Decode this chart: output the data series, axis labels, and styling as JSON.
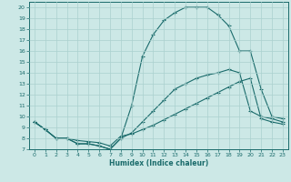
{
  "xlabel": "Humidex (Indice chaleur)",
  "xlim": [
    -0.5,
    23.5
  ],
  "ylim": [
    7,
    20.5
  ],
  "yticks": [
    7,
    8,
    9,
    10,
    11,
    12,
    13,
    14,
    15,
    16,
    17,
    18,
    19,
    20
  ],
  "xticks": [
    0,
    1,
    2,
    3,
    4,
    5,
    6,
    7,
    8,
    9,
    10,
    11,
    12,
    13,
    14,
    15,
    16,
    17,
    18,
    19,
    20,
    21,
    22,
    23
  ],
  "bg_color": "#cce8e6",
  "grid_color": "#aad0ce",
  "line_color": "#1a6b6b",
  "line1_x": [
    0,
    1,
    2,
    3,
    4,
    5,
    6,
    7,
    8,
    9,
    10,
    11,
    12,
    13,
    14,
    15,
    16,
    17,
    18,
    19,
    20,
    21,
    22,
    23
  ],
  "line1_y": [
    9.5,
    8.8,
    8.0,
    8.0,
    7.5,
    7.5,
    7.3,
    7.0,
    8.0,
    11.0,
    15.5,
    17.5,
    18.8,
    19.5,
    20.0,
    20.0,
    20.0,
    19.3,
    18.3,
    16.0,
    16.0,
    12.5,
    10.0,
    9.8
  ],
  "line2_x": [
    0,
    1,
    2,
    3,
    4,
    5,
    6,
    7,
    8,
    9,
    10,
    11,
    12,
    13,
    14,
    15,
    16,
    17,
    18,
    19,
    20,
    21,
    22,
    23
  ],
  "line2_y": [
    9.5,
    8.8,
    8.0,
    8.0,
    7.5,
    7.5,
    7.3,
    7.0,
    8.0,
    8.5,
    9.5,
    10.5,
    11.5,
    12.5,
    13.0,
    13.5,
    13.8,
    14.0,
    14.3,
    14.0,
    10.5,
    10.0,
    9.8,
    9.5
  ],
  "line3_x": [
    0,
    1,
    2,
    3,
    4,
    5,
    6,
    7,
    8,
    9,
    10,
    11,
    12,
    13,
    14,
    15,
    16,
    17,
    18,
    19,
    20,
    21,
    22,
    23
  ],
  "line3_y": [
    9.5,
    8.8,
    8.0,
    8.0,
    7.8,
    7.7,
    7.6,
    7.3,
    8.2,
    8.4,
    8.8,
    9.2,
    9.7,
    10.2,
    10.7,
    11.2,
    11.7,
    12.2,
    12.7,
    13.2,
    13.5,
    9.8,
    9.5,
    9.3
  ]
}
